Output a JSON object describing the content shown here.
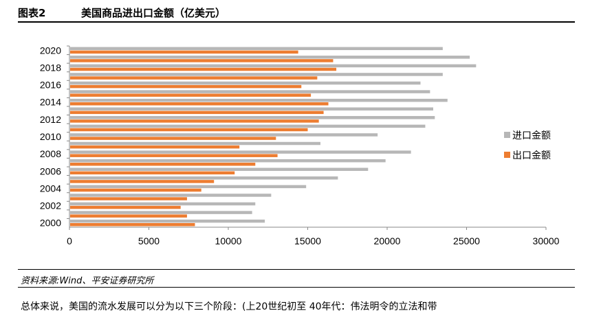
{
  "header": {
    "figure_no": "图表2",
    "title": "美国商品进出口金额（亿美元）"
  },
  "source": "资料来源:Wind、平安证券研究所",
  "body_text": "总体来说，美国的流水发展可以分为以下三个阶段：(上20世纪初至 40年代：伟法明令的立法和带",
  "colors": {
    "import": "#b7b7b7",
    "export": "#ed7d31"
  },
  "chart_data": {
    "type": "bar",
    "orientation": "horizontal",
    "categories": [
      "2000",
      "2001",
      "2002",
      "2003",
      "2004",
      "2005",
      "2006",
      "2007",
      "2008",
      "2009",
      "2010",
      "2011",
      "2012",
      "2013",
      "2014",
      "2015",
      "2016",
      "2017",
      "2018",
      "2019",
      "2020"
    ],
    "series": [
      {
        "name": "进口金额",
        "values": [
          12300,
          11500,
          11700,
          12700,
          14900,
          16900,
          18800,
          19900,
          21500,
          15800,
          19400,
          22400,
          23000,
          22900,
          23800,
          22700,
          22100,
          23500,
          25600,
          25200,
          23500
        ]
      },
      {
        "name": "出口金额",
        "values": [
          7900,
          7400,
          7000,
          7400,
          8300,
          9100,
          10400,
          11700,
          13100,
          10700,
          13000,
          15000,
          15700,
          16000,
          16300,
          15200,
          14600,
          15600,
          16800,
          16600,
          14400
        ]
      }
    ],
    "y_tick_labels": [
      "2000",
      "2002",
      "2004",
      "2006",
      "2008",
      "2010",
      "2012",
      "2014",
      "2016",
      "2018",
      "2020"
    ],
    "xlim": [
      0,
      30000
    ],
    "x_ticks": [
      0,
      5000,
      10000,
      15000,
      20000,
      25000,
      30000
    ],
    "legend_position": "right",
    "grid": false
  }
}
